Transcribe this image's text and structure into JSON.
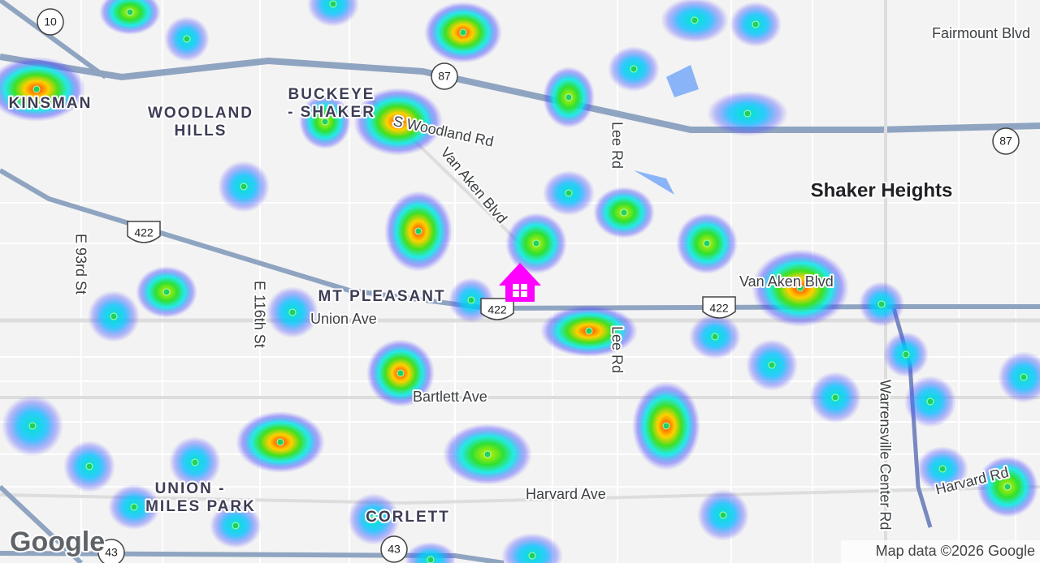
{
  "map": {
    "labels": [
      "Fairmount Blvd",
      "KINSMAN",
      "WOODLAND",
      "HILLS",
      "BUCKEYE",
      "- SHAKER",
      "S Woodland Rd",
      "Van Aken Blvd",
      "Lee Rd",
      "Shaker Heights",
      "E 93rd St",
      "E 116th St",
      "MT PLEASANT",
      "Union Ave",
      "Van Aken Blvd",
      "Lee Rd",
      "Bartlett Ave",
      "Warrensville Center Rd",
      "UNION -",
      "MILES PARK",
      "Harvard Ave",
      "Harvard Rd",
      "CORLETT"
    ],
    "shields": [
      "10",
      "87",
      "87",
      "422",
      "422",
      "422",
      "43",
      "43"
    ],
    "logo": "Google",
    "attribution": "Map data ©2026 Google"
  }
}
